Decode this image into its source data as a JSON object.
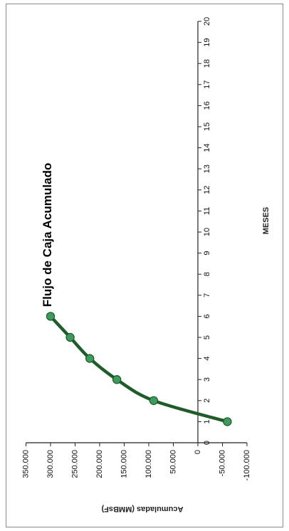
{
  "chart_data": {
    "type": "line",
    "title": "Flujo de Caja Acumulado",
    "xlabel": "MESES",
    "ylabel": "Acumuladas (MMBsF)",
    "x": [
      1,
      2,
      3,
      4,
      5,
      6
    ],
    "values": [
      -60000,
      90000,
      165000,
      220000,
      260000,
      300000
    ],
    "x_ticks": [
      "0",
      "1",
      "2",
      "3",
      "4",
      "5",
      "6",
      "7",
      "8",
      "9",
      "10",
      "11",
      "12",
      "13",
      "14",
      "15",
      "16",
      "17",
      "18",
      "19",
      "20"
    ],
    "y_ticks": [
      "-100.000",
      "-50.000",
      "0",
      "50.000",
      "100.000",
      "150.000",
      "200.000",
      "250.000",
      "300.000",
      "350.000"
    ],
    "xlim": [
      0,
      20
    ],
    "ylim": [
      -100000,
      350000
    ],
    "rotated": "90 degrees counter-clockwise",
    "grid": false,
    "colors": {
      "line": "#1f5c2a",
      "marker": "#3f9a5e",
      "marker_edge": "#1d5a2a",
      "axis": "#222222",
      "frame": "#8a8a8a"
    }
  }
}
